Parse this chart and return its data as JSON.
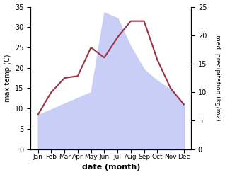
{
  "months": [
    "Jan",
    "Feb",
    "Mar",
    "Apr",
    "May",
    "Jun",
    "Jul",
    "Aug",
    "Sep",
    "Oct",
    "Nov",
    "Dec"
  ],
  "temperature": [
    8.5,
    14.0,
    17.5,
    18.0,
    25.0,
    22.5,
    27.5,
    31.5,
    31.5,
    22.0,
    15.0,
    11.0
  ],
  "precipitation": [
    6.0,
    7.0,
    8.0,
    9.0,
    10.0,
    24.0,
    23.0,
    18.0,
    14.0,
    12.0,
    10.5,
    8.0
  ],
  "temp_color": "#993344",
  "precip_fill_color": "#c8cef5",
  "temp_ylim": [
    0,
    35
  ],
  "precip_ylim": [
    0,
    25
  ],
  "temp_yticks": [
    0,
    5,
    10,
    15,
    20,
    25,
    30,
    35
  ],
  "precip_yticks": [
    0,
    5,
    10,
    15,
    20,
    25
  ],
  "xlabel": "date (month)",
  "ylabel_left": "max temp (C)",
  "ylabel_right": "med. precipitation (kg/m2)"
}
